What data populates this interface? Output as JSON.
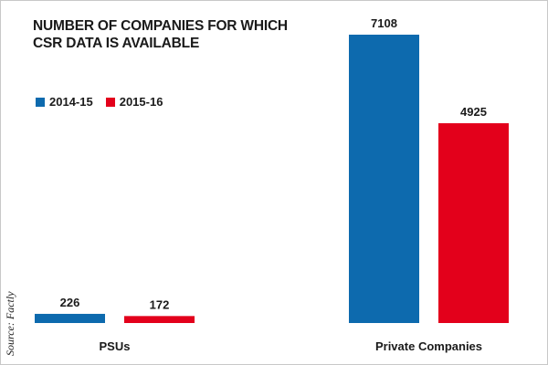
{
  "chart_data": {
    "type": "bar",
    "title": "NUMBER OF COMPANIES FOR WHICH CSR DATA IS AVAILABLE",
    "categories": [
      "PSUs",
      "Private Companies"
    ],
    "series": [
      {
        "name": "2014-15",
        "values": [
          226,
          7108
        ],
        "color": "#0d6aae"
      },
      {
        "name": "2015-16",
        "values": [
          172,
          4925
        ],
        "color": "#e3001b"
      }
    ],
    "ylim": [
      0,
      7500
    ],
    "xlabel": "",
    "ylabel": "",
    "grid": false,
    "legend": "top-left"
  },
  "source": "Source: Factly"
}
